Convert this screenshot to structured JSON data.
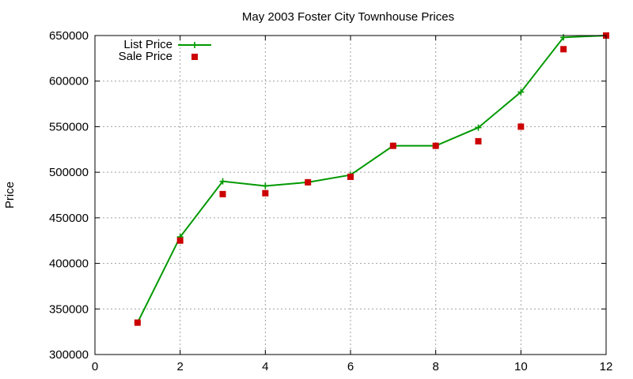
{
  "chart_data": {
    "type": "line",
    "title": "May 2003 Foster City Townhouse Prices",
    "xlabel": "",
    "ylabel": "Price",
    "xlim": [
      0,
      12
    ],
    "ylim": [
      300000,
      650000
    ],
    "x_ticks": [
      0,
      2,
      4,
      6,
      8,
      10,
      12
    ],
    "y_ticks": [
      300000,
      350000,
      400000,
      450000,
      500000,
      550000,
      600000,
      650000
    ],
    "grid": true,
    "legend_position": "top-left",
    "series": [
      {
        "name": "List Price",
        "style": "line-with-plus-markers",
        "color": "#009900",
        "x": [
          1,
          2,
          3,
          4,
          5,
          6,
          7,
          8,
          9,
          10,
          11,
          12
        ],
        "y": [
          335000,
          429000,
          490000,
          485000,
          489000,
          497000,
          529000,
          529000,
          549000,
          588000,
          648000,
          650000
        ]
      },
      {
        "name": "Sale Price",
        "style": "square-points",
        "color": "#cc0000",
        "x": [
          1,
          2,
          3,
          4,
          5,
          6,
          7,
          8,
          9,
          10,
          11,
          12
        ],
        "y": [
          335000,
          425000,
          476000,
          477000,
          489000,
          495000,
          529000,
          529000,
          534000,
          550000,
          635000,
          650000
        ]
      }
    ]
  }
}
